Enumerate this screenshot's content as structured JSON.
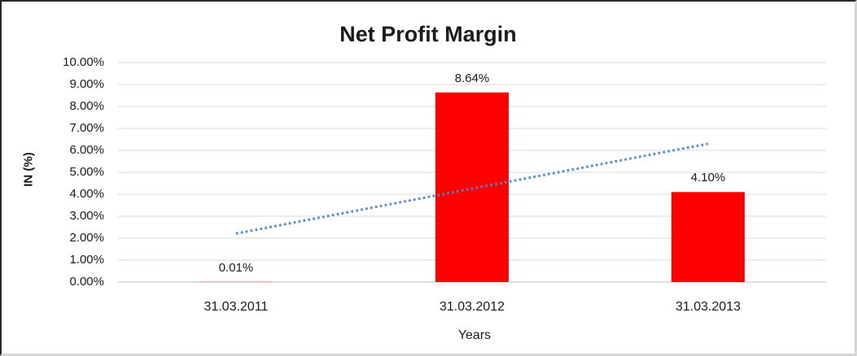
{
  "chart_data": {
    "type": "bar",
    "title": "Net Profit Margin",
    "xlabel": "Years",
    "ylabel": "IN (%)",
    "categories": [
      "31.03.2011",
      "31.03.2012",
      "31.03.2013"
    ],
    "values": [
      0.01,
      8.64,
      4.1
    ],
    "data_labels": [
      "0.01%",
      "8.64%",
      "4.10%"
    ],
    "ylim": [
      0,
      10
    ],
    "ytick_step": 1,
    "ytick_labels": [
      "0.00%",
      "1.00%",
      "2.00%",
      "3.00%",
      "4.00%",
      "5.00%",
      "6.00%",
      "7.00%",
      "8.00%",
      "9.00%",
      "10.00%"
    ],
    "grid": true,
    "legend": "none",
    "bar_color": "#FF0000",
    "trendline": {
      "type": "linear",
      "style": "dotted",
      "color": "#4F87C8",
      "endpoint_values": [
        2.21,
        6.3
      ],
      "spans_categories": [
        1,
        3
      ]
    }
  },
  "colors": {
    "gridline": "#D9D9D9",
    "axis_line": "#BFBFBF",
    "text": "#1A1A1A",
    "frame_dark": "#2A2A2A",
    "frame_light": "#D5D5D5"
  }
}
